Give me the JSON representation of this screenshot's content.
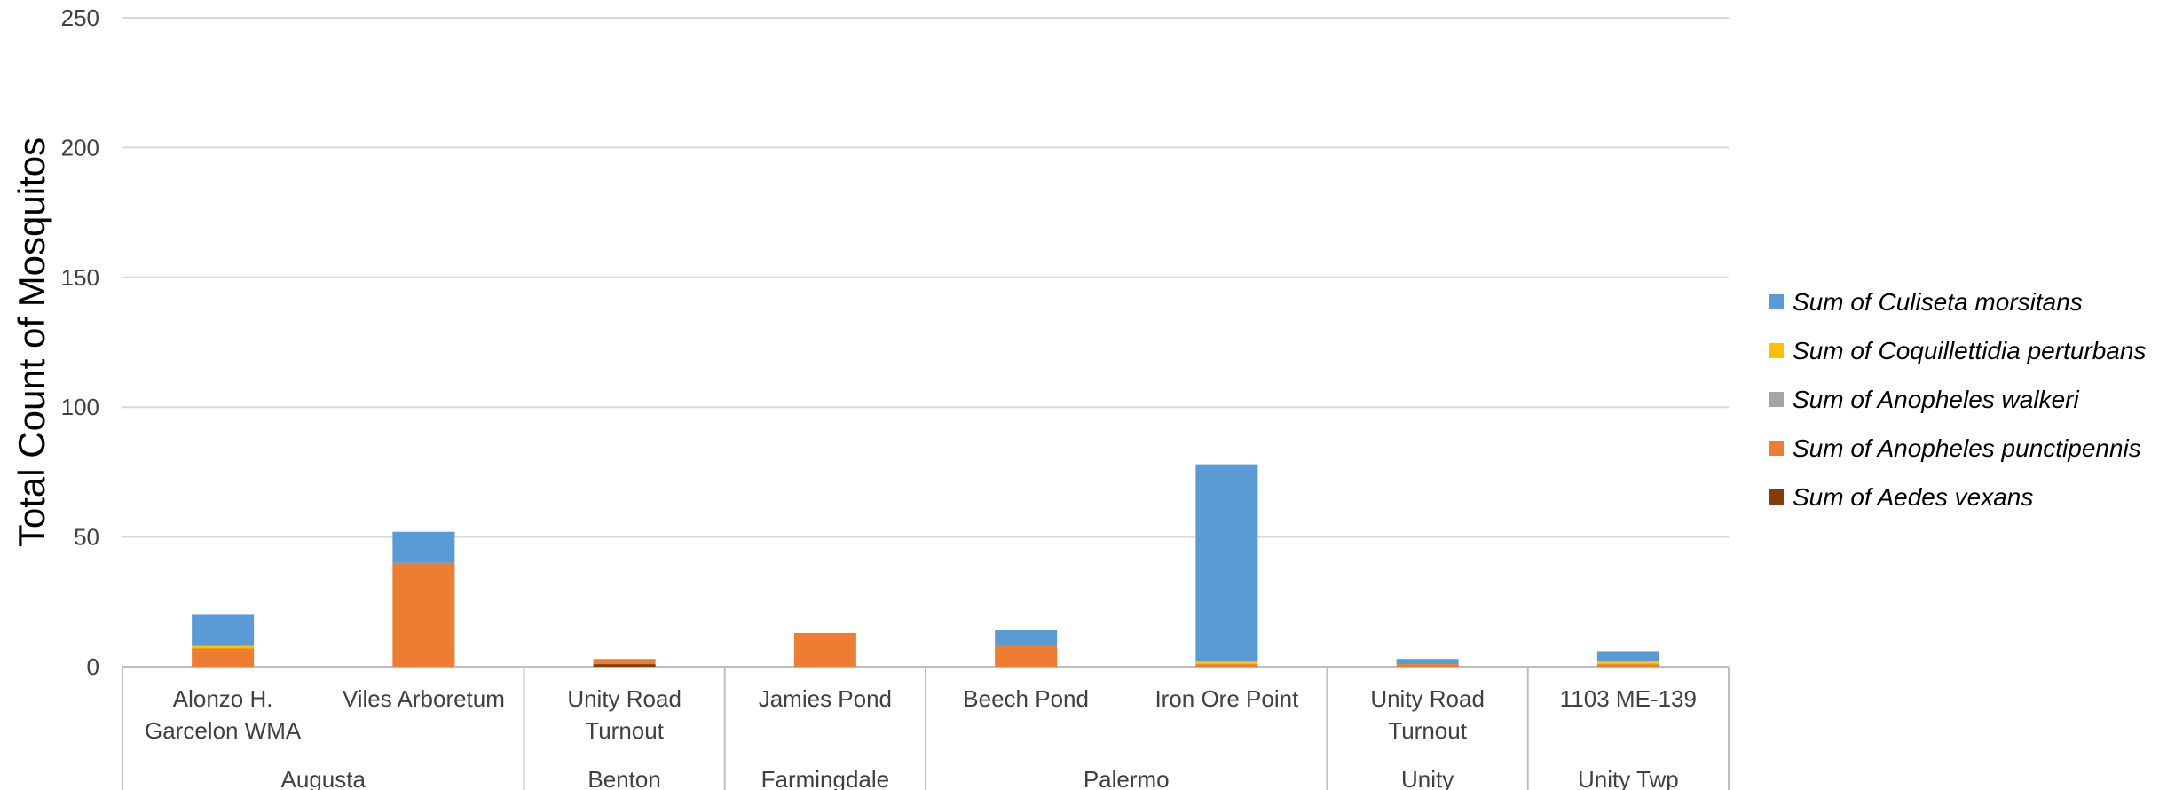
{
  "chart_data": {
    "type": "bar",
    "stacked": true,
    "ylabel": "Total Count of Mosquitos",
    "xlabel": "",
    "ylim": [
      0,
      250
    ],
    "yticks": [
      0,
      50,
      100,
      150,
      200,
      250
    ],
    "grid": true,
    "legend_position": "right",
    "categories": [
      {
        "label": "Alonzo H. Garcelon WMA",
        "lines": [
          "Alonzo H.",
          "Garcelon WMA"
        ],
        "group": "Augusta"
      },
      {
        "label": "Viles Arboretum",
        "lines": [
          "Viles Arboretum"
        ],
        "group": "Augusta"
      },
      {
        "label": "Unity Road Turnout",
        "lines": [
          "Unity Road",
          "Turnout"
        ],
        "group": "Benton"
      },
      {
        "label": "Jamies Pond",
        "lines": [
          "Jamies Pond"
        ],
        "group": "Farmingdale"
      },
      {
        "label": "Beech Pond",
        "lines": [
          "Beech Pond"
        ],
        "group": "Palermo"
      },
      {
        "label": "Iron Ore Point",
        "lines": [
          "Iron Ore Point"
        ],
        "group": "Palermo"
      },
      {
        "label": "Unity Road Turnout",
        "lines": [
          "Unity Road",
          "Turnout"
        ],
        "group": "Unity"
      },
      {
        "label": "1103 ME-139",
        "lines": [
          "1103 ME-139"
        ],
        "group": "Unity Twp"
      }
    ],
    "groups": [
      "Augusta",
      "Benton",
      "Farmingdale",
      "Palermo",
      "Unity",
      "Unity Twp"
    ],
    "series": [
      {
        "name": "Sum of Aedes vexans",
        "color": "#843C0C",
        "values": [
          0,
          0,
          1,
          0,
          0,
          0,
          0,
          0
        ]
      },
      {
        "name": "Sum of Anopheles punctipennis",
        "color": "#ED7D31",
        "values": [
          7,
          40,
          2,
          13,
          8,
          1,
          1,
          1
        ]
      },
      {
        "name": "Sum of Anopheles walkeri",
        "color": "#A5A5A5",
        "values": [
          0,
          0,
          0,
          0,
          0,
          0,
          0,
          0
        ]
      },
      {
        "name": "Sum of Coquillettidia perturbans",
        "color": "#FFC000",
        "values": [
          1,
          0,
          0,
          0,
          0,
          1,
          0,
          1
        ]
      },
      {
        "name": "Sum of Culiseta morsitans",
        "color": "#5B9BD5",
        "values": [
          12,
          12,
          0,
          0,
          6,
          76,
          2,
          4
        ]
      }
    ],
    "legend_order": [
      "Sum of Culiseta morsitans",
      "Sum of Coquillettidia perturbans",
      "Sum of Anopheles walkeri",
      "Sum of Anopheles punctipennis",
      "Sum of Aedes vexans"
    ]
  }
}
